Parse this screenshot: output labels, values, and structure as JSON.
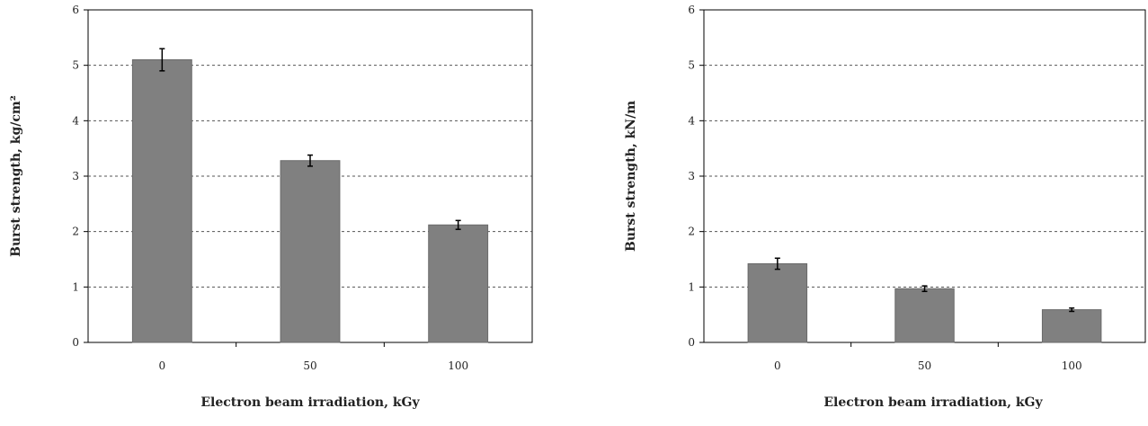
{
  "chart_data": [
    {
      "type": "bar",
      "categories": [
        "0",
        "50",
        "100"
      ],
      "values": [
        5.1,
        3.28,
        2.12
      ],
      "errors": [
        0.2,
        0.1,
        0.08
      ],
      "xlabel": "Electron beam irradiation, kGy",
      "ylabel": "Burst strength, kg/cm²",
      "ylim": [
        0,
        6
      ],
      "yticks": [
        "0",
        "1",
        "2",
        "3",
        "4",
        "5",
        "6"
      ],
      "grid": true,
      "bar_color": "#808080"
    },
    {
      "type": "bar",
      "categories": [
        "0",
        "50",
        "100"
      ],
      "values": [
        1.42,
        0.97,
        0.59
      ],
      "errors": [
        0.1,
        0.05,
        0.03
      ],
      "xlabel": "Electron beam irradiation, kGy",
      "ylabel": "Burst strength, kN/m",
      "ylim": [
        0,
        6
      ],
      "yticks": [
        "0",
        "1",
        "2",
        "3",
        "4",
        "5",
        "6"
      ],
      "grid": true,
      "bar_color": "#808080"
    }
  ]
}
